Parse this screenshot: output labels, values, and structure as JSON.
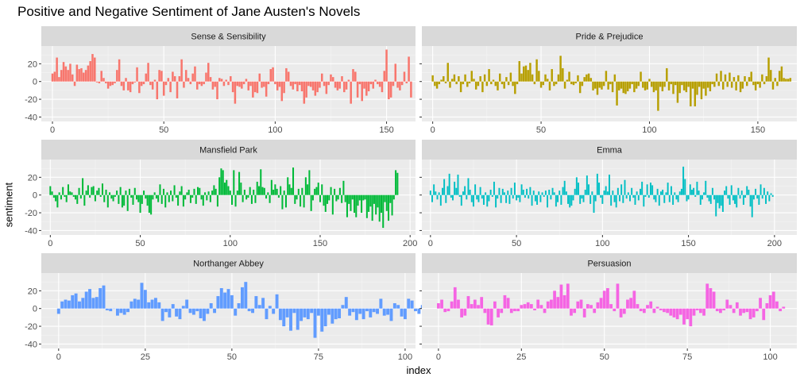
{
  "chart_data": {
    "type": "bar",
    "title": "Positive and Negative Sentiment of Jane Austen's Novels",
    "xlabel": "index",
    "ylabel": "sentiment",
    "layout": "facet-wrap 3x2",
    "grid": true,
    "legend": "none",
    "facets": [
      {
        "name": "Sense & Sensibility",
        "color": "#F8766D",
        "xlim": [
          -5,
          163
        ],
        "ylim": [
          -45,
          40
        ],
        "xticks": [
          0,
          50,
          100,
          150
        ],
        "yticks": [
          -40,
          -20,
          0,
          20
        ],
        "values": [
          9,
          11,
          27,
          5,
          13,
          22,
          17,
          13,
          20,
          8,
          -5,
          19,
          14,
          15,
          10,
          13,
          18,
          23,
          31,
          27,
          -1,
          -2,
          12,
          4,
          -2,
          -8,
          -5,
          -4,
          -2,
          13,
          25,
          -5,
          -10,
          4,
          -10,
          -12,
          -3,
          -1,
          16,
          -13,
          -5,
          -3,
          9,
          21,
          -4,
          -9,
          2,
          -20,
          13,
          12,
          -16,
          -4,
          4,
          -12,
          11,
          6,
          -19,
          6,
          25,
          -7,
          13,
          4,
          -3,
          9,
          17,
          -9,
          -3,
          -5,
          -3,
          10,
          21,
          5,
          -9,
          -6,
          -20,
          4,
          3,
          -5,
          2,
          -4,
          6,
          -12,
          -25,
          -5,
          -6,
          -8,
          -3,
          3,
          -10,
          -5,
          -18,
          -12,
          -13,
          9,
          -7,
          -6,
          -17,
          -3,
          14,
          16,
          -3,
          -10,
          -6,
          -22,
          -13,
          15,
          11,
          -5,
          -9,
          -3,
          -11,
          -4,
          -11,
          -25,
          -18,
          -5,
          -6,
          -10,
          -16,
          -12,
          -7,
          9,
          -5,
          -14,
          -4,
          8,
          5,
          -7,
          -10,
          -8,
          6,
          -12,
          -9,
          2,
          -25,
          14,
          11,
          -18,
          -3,
          -22,
          -8,
          -16,
          -11,
          -3,
          -8,
          2,
          -3,
          -6,
          -12,
          12,
          36,
          -20,
          -18,
          -5,
          20,
          -7,
          -10,
          -4,
          11,
          -2,
          28,
          -18
        ]
      },
      {
        "name": "Pride & Prejudice",
        "color": "#B79F00",
        "xlim": [
          -5,
          168
        ],
        "ylim": [
          -45,
          40
        ],
        "xticks": [
          0,
          50,
          100,
          150
        ],
        "yticks": [
          -40,
          -20,
          0,
          20
        ],
        "values": [
          7,
          -5,
          -8,
          -3,
          2,
          6,
          -2,
          21,
          -7,
          3,
          8,
          -3,
          6,
          -12,
          -3,
          8,
          -6,
          -2,
          12,
          3,
          -9,
          -5,
          6,
          -12,
          8,
          -5,
          14,
          -3,
          2,
          -5,
          -10,
          9,
          -3,
          -8,
          5,
          -4,
          10,
          -5,
          -14,
          -3,
          23,
          9,
          17,
          18,
          13,
          21,
          8,
          -3,
          25,
          12,
          -7,
          -4,
          8,
          3,
          -10,
          14,
          -5,
          -3,
          8,
          29,
          15,
          -8,
          2,
          11,
          -3,
          -4,
          -2,
          7,
          -13,
          -5,
          5,
          8,
          9,
          4,
          -10,
          -8,
          -15,
          -7,
          -9,
          -5,
          12,
          -9,
          -3,
          -12,
          8,
          -27,
          -10,
          -8,
          -13,
          -14,
          -11,
          -8,
          -3,
          -12,
          -8,
          -5,
          11,
          -7,
          -10,
          -9,
          3,
          -6,
          -12,
          -10,
          -33,
          -6,
          -11,
          -6,
          15,
          -10,
          -3,
          -14,
          -4,
          -24,
          -13,
          -4,
          -10,
          -12,
          -6,
          -28,
          -8,
          -28,
          -15,
          -6,
          -20,
          -8,
          -16,
          -7,
          -11,
          -3,
          -6,
          9,
          -5,
          12,
          -9,
          8,
          -6,
          10,
          -7,
          5,
          -10,
          7,
          -12,
          -8,
          6,
          -5,
          5,
          11,
          -4,
          -10,
          -3,
          -7,
          8,
          -3,
          6,
          27,
          13,
          -9,
          4,
          -5,
          12,
          17,
          4,
          3,
          3,
          4
        ]
      },
      {
        "name": "Mansfield Park",
        "color": "#00BA38",
        "xlim": [
          -5,
          203
        ],
        "ylim": [
          -45,
          40
        ],
        "xticks": [
          0,
          50,
          100,
          150,
          200
        ],
        "yticks": [
          -40,
          -20,
          0,
          20
        ],
        "values": [
          10,
          4,
          -3,
          -7,
          -14,
          3,
          -5,
          9,
          -2,
          -8,
          12,
          4,
          3,
          -2,
          -5,
          -10,
          8,
          -4,
          19,
          -12,
          5,
          11,
          -3,
          9,
          10,
          -7,
          5,
          8,
          -2,
          13,
          -8,
          6,
          -14,
          3,
          -4,
          -7,
          -2,
          5,
          -10,
          9,
          -14,
          -12,
          5,
          -18,
          7,
          -3,
          -11,
          8,
          -5,
          -8,
          -20,
          -10,
          5,
          -4,
          -12,
          -20,
          -22,
          -5,
          3,
          -4,
          -8,
          12,
          -10,
          7,
          -14,
          3,
          -8,
          5,
          -7,
          11,
          -3,
          -12,
          4,
          10,
          -13,
          -5,
          3,
          6,
          -9,
          -3,
          7,
          -10,
          9,
          8,
          -5,
          -12,
          3,
          -6,
          4,
          -8,
          5,
          11,
          7,
          -13,
          20,
          30,
          28,
          14,
          17,
          10,
          5,
          -11,
          28,
          -13,
          5,
          26,
          14,
          -8,
          6,
          -5,
          -3,
          9,
          -10,
          6,
          -9,
          15,
          10,
          29,
          9,
          8,
          -4,
          3,
          -9,
          17,
          6,
          12,
          7,
          -3,
          10,
          -16,
          5,
          -14,
          20,
          12,
          8,
          31,
          -10,
          -5,
          7,
          -13,
          8,
          -14,
          20,
          12,
          28,
          -18,
          -6,
          7,
          9,
          14,
          -8,
          12,
          -12,
          -19,
          -10,
          -6,
          9,
          -22,
          7,
          -7,
          -5,
          8,
          -9,
          16,
          -8,
          -25,
          -10,
          -18,
          -5,
          -20,
          -25,
          -12,
          -6,
          -20,
          -6,
          -5,
          -26,
          -19,
          -13,
          -29,
          -10,
          -22,
          -14,
          -30,
          -20,
          -37,
          -8,
          -18,
          -29,
          -9,
          -23,
          -5,
          28,
          25
        ]
      },
      {
        "name": "Emma",
        "color": "#00BFC4",
        "xlim": [
          -5,
          213
        ],
        "ylim": [
          -45,
          40
        ],
        "xticks": [
          0,
          50,
          100,
          150,
          200
        ],
        "yticks": [
          -40,
          -20,
          0,
          20
        ],
        "values": [
          5,
          -8,
          12,
          4,
          -5,
          3,
          -12,
          8,
          18,
          -9,
          10,
          24,
          -3,
          -6,
          15,
          8,
          23,
          -2,
          -12,
          4,
          10,
          -5,
          19,
          6,
          -8,
          -13,
          12,
          -5,
          -8,
          9,
          -4,
          -11,
          3,
          -13,
          -7,
          6,
          -2,
          15,
          -14,
          -4,
          8,
          -9,
          7,
          3,
          -9,
          5,
          -10,
          8,
          -4,
          14,
          -6,
          -3,
          -8,
          12,
          6,
          -3,
          7,
          -4,
          9,
          -12,
          5,
          -7,
          -11,
          4,
          -8,
          3,
          -2,
          5,
          -14,
          6,
          -5,
          8,
          3,
          -13,
          -8,
          5,
          -11,
          9,
          16,
          4,
          -10,
          -14,
          -12,
          -6,
          7,
          20,
          14,
          -10,
          -4,
          -8,
          6,
          22,
          12,
          -10,
          4,
          -20,
          -7,
          24,
          14,
          -3,
          -10,
          5,
          10,
          4,
          23,
          -12,
          5,
          -8,
          -14,
          8,
          -7,
          12,
          -9,
          17,
          -4,
          3,
          -7,
          8,
          -3,
          -11,
          4,
          -6,
          7,
          15,
          -13,
          -2,
          12,
          -3,
          14,
          11,
          -5,
          -8,
          7,
          -12,
          4,
          6,
          -9,
          3,
          14,
          -8,
          10,
          -11,
          3,
          -5,
          -8,
          4,
          7,
          32,
          18,
          -7,
          -5,
          12,
          6,
          8,
          -2,
          15,
          5,
          -11,
          -5,
          3,
          16,
          -3,
          -7,
          -10,
          8,
          -5,
          -24,
          -9,
          -15,
          -12,
          -19,
          5,
          10,
          -4,
          -11,
          11,
          -6,
          -10,
          -14,
          8,
          -4,
          5,
          -11,
          -3,
          10,
          6,
          -13,
          -25,
          -5,
          7,
          -4,
          -11,
          12,
          -4,
          8,
          -10,
          4,
          -7,
          2,
          -2
        ]
      },
      {
        "name": "Northanger Abbey",
        "color": "#619CFF",
        "xlim": [
          -5,
          103
        ],
        "ylim": [
          -45,
          40
        ],
        "xticks": [
          0,
          25,
          50,
          75,
          100
        ],
        "yticks": [
          -40,
          -20,
          0,
          20
        ],
        "values": [
          -6,
          8,
          10,
          9,
          15,
          17,
          8,
          12,
          19,
          22,
          12,
          13,
          23,
          26,
          -2,
          -3,
          0,
          -8,
          -5,
          -7,
          -4,
          8,
          11,
          10,
          29,
          21,
          7,
          10,
          12,
          7,
          -14,
          -4,
          -10,
          5,
          -9,
          -12,
          3,
          10,
          -5,
          -7,
          -3,
          -11,
          -14,
          -6,
          6,
          -5,
          14,
          23,
          18,
          22,
          15,
          -8,
          6,
          24,
          30,
          -3,
          -5,
          14,
          4,
          12,
          -12,
          3,
          -6,
          16,
          -13,
          -20,
          -10,
          -25,
          -5,
          -24,
          -14,
          -10,
          -12,
          -5,
          -33,
          -8,
          -26,
          -20,
          -7,
          -17,
          -12,
          -11,
          4,
          13,
          -8,
          -4,
          -13,
          -6,
          -12,
          -3,
          -10,
          -4,
          -6,
          11,
          -8,
          -7,
          -14,
          6,
          4,
          -9,
          -12,
          11,
          9,
          -3,
          -6,
          4
        ]
      },
      {
        "name": "Persuasion",
        "color": "#F564E3",
        "xlim": [
          -5,
          108
        ],
        "ylim": [
          -45,
          40
        ],
        "xticks": [
          0,
          25,
          50,
          75,
          100
        ],
        "yticks": [
          -40,
          -20,
          0,
          20
        ],
        "values": [
          6,
          10,
          -4,
          -3,
          8,
          24,
          10,
          -10,
          -8,
          14,
          5,
          10,
          4,
          13,
          -5,
          -18,
          -19,
          8,
          -10,
          -5,
          15,
          12,
          -5,
          -3,
          -3,
          4,
          5,
          7,
          5,
          -2,
          10,
          4,
          -5,
          8,
          10,
          20,
          13,
          27,
          15,
          28,
          -8,
          -5,
          8,
          10,
          -10,
          5,
          4,
          -5,
          7,
          12,
          20,
          23,
          5,
          -3,
          28,
          -10,
          -6,
          10,
          12,
          20,
          5,
          -3,
          -5,
          4,
          8,
          -5,
          2,
          -2,
          -4,
          -5,
          -8,
          -10,
          -12,
          -7,
          -18,
          -12,
          -20,
          -8,
          -2,
          -5,
          -8,
          28,
          23,
          19,
          -3,
          -5,
          -2,
          10,
          4,
          -5,
          7,
          -8,
          -5,
          -4,
          -12,
          -10,
          -3,
          12,
          -13,
          6,
          15,
          19,
          8,
          -3,
          2
        ]
      }
    ]
  }
}
